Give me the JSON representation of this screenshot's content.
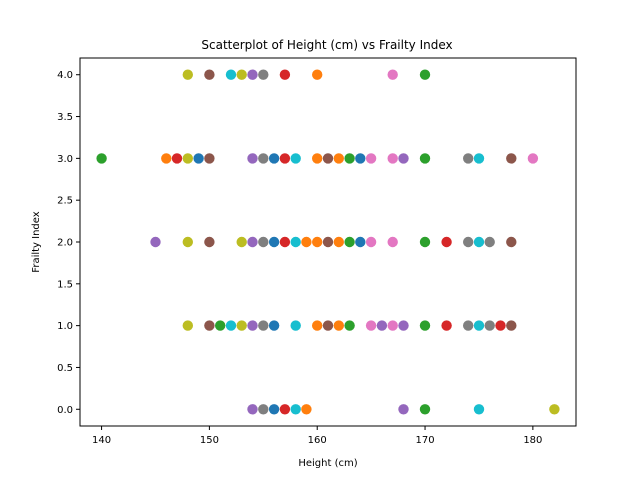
{
  "chart_data": {
    "type": "scatter",
    "title": "Scatterplot of Height (cm) vs Frailty Index",
    "xlabel": "Height (cm)",
    "ylabel": "Frailty Index",
    "xlim": [
      138,
      184
    ],
    "ylim": [
      -0.2,
      4.2
    ],
    "xticks": [
      "140",
      "150",
      "160",
      "170",
      "180"
    ],
    "yticks": [
      "0.0",
      "0.5",
      "1.0",
      "1.5",
      "2.0",
      "2.5",
      "3.0",
      "3.5",
      "4.0"
    ],
    "xtick_values": [
      140,
      150,
      160,
      170,
      180
    ],
    "ytick_values": [
      0.0,
      0.5,
      1.0,
      1.5,
      2.0,
      2.5,
      3.0,
      3.5,
      4.0
    ],
    "grid": false,
    "colors": [
      "#1f77b4",
      "#ff7f0e",
      "#2ca02c",
      "#d62728",
      "#9467bd",
      "#8c564b",
      "#e377c2",
      "#7f7f7f",
      "#bcbd22",
      "#17becf"
    ],
    "points": [
      {
        "x": 148,
        "y": 4,
        "c": 8
      },
      {
        "x": 150,
        "y": 4,
        "c": 5
      },
      {
        "x": 152,
        "y": 4,
        "c": 9
      },
      {
        "x": 153,
        "y": 4,
        "c": 8
      },
      {
        "x": 154,
        "y": 4,
        "c": 4
      },
      {
        "x": 155,
        "y": 4,
        "c": 7
      },
      {
        "x": 157,
        "y": 4,
        "c": 3
      },
      {
        "x": 160,
        "y": 4,
        "c": 1
      },
      {
        "x": 167,
        "y": 4,
        "c": 6
      },
      {
        "x": 170,
        "y": 4,
        "c": 2
      },
      {
        "x": 140,
        "y": 3,
        "c": 2
      },
      {
        "x": 146,
        "y": 3,
        "c": 1
      },
      {
        "x": 147,
        "y": 3,
        "c": 3
      },
      {
        "x": 148,
        "y": 3,
        "c": 8
      },
      {
        "x": 149,
        "y": 3,
        "c": 0
      },
      {
        "x": 150,
        "y": 3,
        "c": 5
      },
      {
        "x": 154,
        "y": 3,
        "c": 4
      },
      {
        "x": 155,
        "y": 3,
        "c": 7
      },
      {
        "x": 156,
        "y": 3,
        "c": 0
      },
      {
        "x": 157,
        "y": 3,
        "c": 3
      },
      {
        "x": 158,
        "y": 3,
        "c": 9
      },
      {
        "x": 160,
        "y": 3,
        "c": 1
      },
      {
        "x": 161,
        "y": 3,
        "c": 5
      },
      {
        "x": 162,
        "y": 3,
        "c": 1
      },
      {
        "x": 163,
        "y": 3,
        "c": 2
      },
      {
        "x": 164,
        "y": 3,
        "c": 0
      },
      {
        "x": 165,
        "y": 3,
        "c": 6
      },
      {
        "x": 167,
        "y": 3,
        "c": 6
      },
      {
        "x": 168,
        "y": 3,
        "c": 4
      },
      {
        "x": 170,
        "y": 3,
        "c": 2
      },
      {
        "x": 174,
        "y": 3,
        "c": 7
      },
      {
        "x": 175,
        "y": 3,
        "c": 9
      },
      {
        "x": 178,
        "y": 3,
        "c": 5
      },
      {
        "x": 180,
        "y": 3,
        "c": 6
      },
      {
        "x": 145,
        "y": 2,
        "c": 4
      },
      {
        "x": 148,
        "y": 2,
        "c": 8
      },
      {
        "x": 150,
        "y": 2,
        "c": 5
      },
      {
        "x": 153,
        "y": 2,
        "c": 8
      },
      {
        "x": 154,
        "y": 2,
        "c": 4
      },
      {
        "x": 155,
        "y": 2,
        "c": 7
      },
      {
        "x": 156,
        "y": 2,
        "c": 0
      },
      {
        "x": 157,
        "y": 2,
        "c": 3
      },
      {
        "x": 158,
        "y": 2,
        "c": 9
      },
      {
        "x": 159,
        "y": 2,
        "c": 1
      },
      {
        "x": 160,
        "y": 2,
        "c": 1
      },
      {
        "x": 161,
        "y": 2,
        "c": 5
      },
      {
        "x": 162,
        "y": 2,
        "c": 1
      },
      {
        "x": 163,
        "y": 2,
        "c": 2
      },
      {
        "x": 164,
        "y": 2,
        "c": 0
      },
      {
        "x": 165,
        "y": 2,
        "c": 6
      },
      {
        "x": 167,
        "y": 2,
        "c": 6
      },
      {
        "x": 170,
        "y": 2,
        "c": 2
      },
      {
        "x": 172,
        "y": 2,
        "c": 3
      },
      {
        "x": 174,
        "y": 2,
        "c": 7
      },
      {
        "x": 175,
        "y": 2,
        "c": 9
      },
      {
        "x": 176,
        "y": 2,
        "c": 7
      },
      {
        "x": 178,
        "y": 2,
        "c": 5
      },
      {
        "x": 148,
        "y": 1,
        "c": 8
      },
      {
        "x": 150,
        "y": 1,
        "c": 5
      },
      {
        "x": 151,
        "y": 1,
        "c": 2
      },
      {
        "x": 152,
        "y": 1,
        "c": 9
      },
      {
        "x": 153,
        "y": 1,
        "c": 8
      },
      {
        "x": 154,
        "y": 1,
        "c": 4
      },
      {
        "x": 155,
        "y": 1,
        "c": 7
      },
      {
        "x": 156,
        "y": 1,
        "c": 0
      },
      {
        "x": 158,
        "y": 1,
        "c": 9
      },
      {
        "x": 160,
        "y": 1,
        "c": 1
      },
      {
        "x": 161,
        "y": 1,
        "c": 5
      },
      {
        "x": 162,
        "y": 1,
        "c": 1
      },
      {
        "x": 163,
        "y": 1,
        "c": 2
      },
      {
        "x": 165,
        "y": 1,
        "c": 6
      },
      {
        "x": 166,
        "y": 1,
        "c": 4
      },
      {
        "x": 167,
        "y": 1,
        "c": 6
      },
      {
        "x": 168,
        "y": 1,
        "c": 4
      },
      {
        "x": 170,
        "y": 1,
        "c": 2
      },
      {
        "x": 172,
        "y": 1,
        "c": 3
      },
      {
        "x": 174,
        "y": 1,
        "c": 7
      },
      {
        "x": 175,
        "y": 1,
        "c": 9
      },
      {
        "x": 176,
        "y": 1,
        "c": 7
      },
      {
        "x": 177,
        "y": 1,
        "c": 3
      },
      {
        "x": 178,
        "y": 1,
        "c": 5
      },
      {
        "x": 154,
        "y": 0,
        "c": 4
      },
      {
        "x": 155,
        "y": 0,
        "c": 7
      },
      {
        "x": 156,
        "y": 0,
        "c": 0
      },
      {
        "x": 157,
        "y": 0,
        "c": 3
      },
      {
        "x": 158,
        "y": 0,
        "c": 9
      },
      {
        "x": 159,
        "y": 0,
        "c": 1
      },
      {
        "x": 168,
        "y": 0,
        "c": 4
      },
      {
        "x": 170,
        "y": 0,
        "c": 2
      },
      {
        "x": 175,
        "y": 0,
        "c": 9
      },
      {
        "x": 182,
        "y": 0,
        "c": 8
      }
    ]
  }
}
